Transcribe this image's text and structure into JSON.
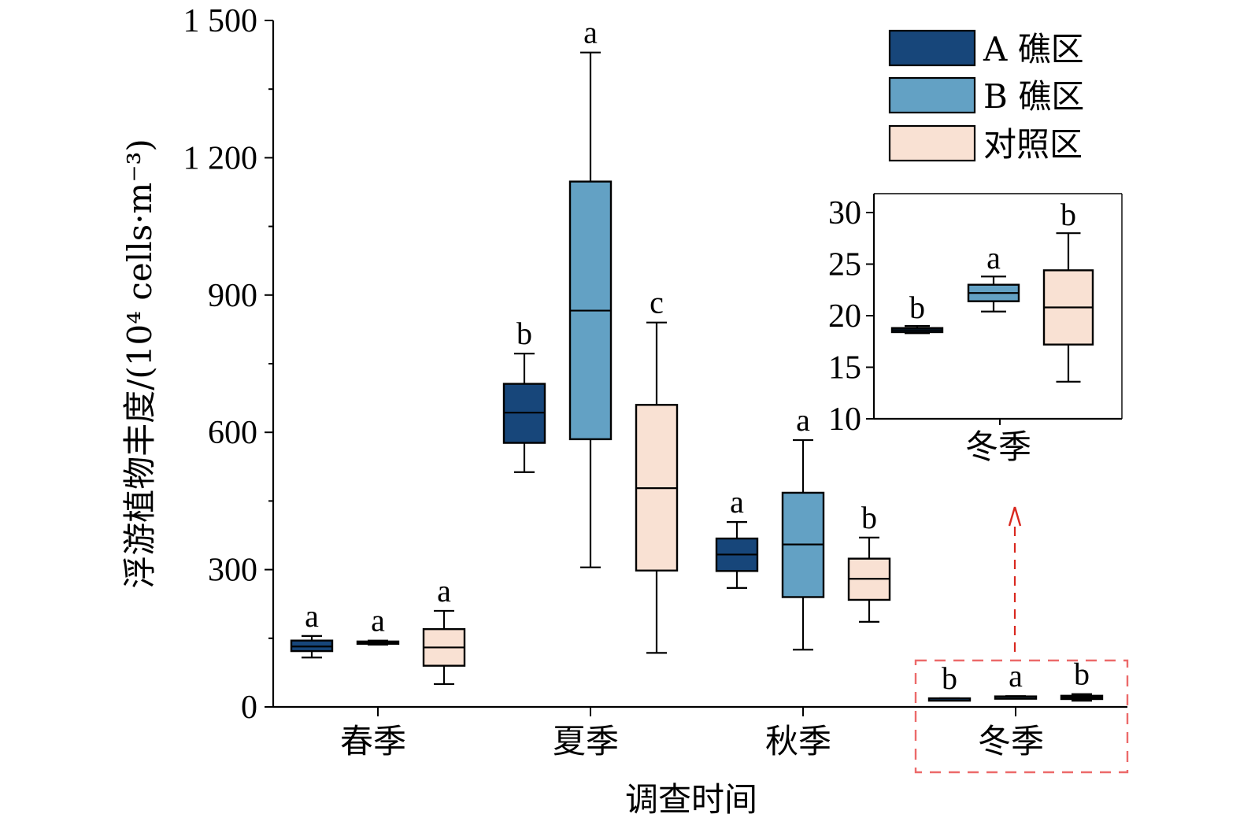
{
  "chart_data": {
    "type": "box",
    "xlabel": "调查时间",
    "ylabel": "浮游植物丰度/(10⁴ cells·m⁻³)",
    "ylim": [
      0,
      1500
    ],
    "yticks": [
      "0",
      "300",
      "600",
      "900",
      "1 200",
      "1 500"
    ],
    "categories": [
      "春季",
      "夏季",
      "秋季",
      "冬季"
    ],
    "legend": {
      "position": "top-right"
    },
    "series": [
      {
        "name": "A 礁区",
        "color": "#17467a",
        "boxes": [
          {
            "min": 108,
            "q1": 122,
            "median": 132,
            "q3": 145,
            "max": 155,
            "sig": "a"
          },
          {
            "min": 513,
            "q1": 577,
            "median": 643,
            "q3": 706,
            "max": 772,
            "sig": "b"
          },
          {
            "min": 260,
            "q1": 297,
            "median": 333,
            "q3": 368,
            "max": 404,
            "sig": "a"
          },
          {
            "min": 18.3,
            "q1": 18.4,
            "median": 18.6,
            "q3": 18.8,
            "max": 19,
            "sig": "b"
          }
        ]
      },
      {
        "name": "B 礁区",
        "color": "#63a1c4",
        "boxes": [
          {
            "min": 136,
            "q1": 138,
            "median": 141,
            "q3": 143,
            "max": 145,
            "sig": "a"
          },
          {
            "min": 305,
            "q1": 585,
            "median": 866,
            "q3": 1148,
            "max": 1430,
            "sig": "a"
          },
          {
            "min": 125,
            "q1": 240,
            "median": 355,
            "q3": 468,
            "max": 583,
            "sig": "a"
          },
          {
            "min": 20.4,
            "q1": 21.4,
            "median": 22.2,
            "q3": 23.0,
            "max": 23.8,
            "sig": "a"
          }
        ]
      },
      {
        "name": "对照区",
        "color": "#f9e1d3",
        "boxes": [
          {
            "min": 50,
            "q1": 90,
            "median": 130,
            "q3": 170,
            "max": 210,
            "sig": "a"
          },
          {
            "min": 118,
            "q1": 298,
            "median": 478,
            "q3": 660,
            "max": 840,
            "sig": "c"
          },
          {
            "min": 186,
            "q1": 234,
            "median": 280,
            "q3": 324,
            "max": 370,
            "sig": "b"
          },
          {
            "min": 13.6,
            "q1": 17.2,
            "median": 20.8,
            "q3": 24.4,
            "max": 28,
            "sig": "b"
          }
        ]
      }
    ],
    "inset": {
      "category": "冬季",
      "ylim": [
        10,
        30
      ],
      "yticks": [
        "10",
        "15",
        "20",
        "25",
        "30"
      ]
    }
  }
}
